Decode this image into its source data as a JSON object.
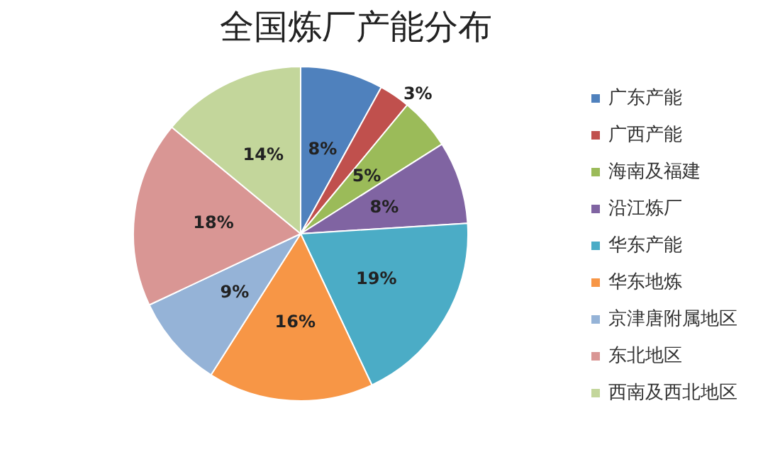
{
  "chart_data": {
    "type": "pie",
    "title": "全国炼厂产能分布",
    "categories": [
      "广东产能",
      "广西产能",
      "海南及福建",
      "沿江炼厂",
      "华东产能",
      "华东地炼",
      "京津唐附属地区",
      "东北地区",
      "西南及西北地区"
    ],
    "values": [
      8,
      3,
      5,
      8,
      19,
      16,
      9,
      18,
      14
    ],
    "colors": [
      "#4f81bd",
      "#c0504d",
      "#9bbb59",
      "#8064a2",
      "#4bacc6",
      "#f79646",
      "#95b3d7",
      "#d99694",
      "#c3d69b"
    ],
    "value_labels": [
      "8%",
      "3%",
      "5%",
      "8%",
      "19%",
      "16%",
      "9%",
      "18%",
      "14%"
    ],
    "legend": "right"
  }
}
